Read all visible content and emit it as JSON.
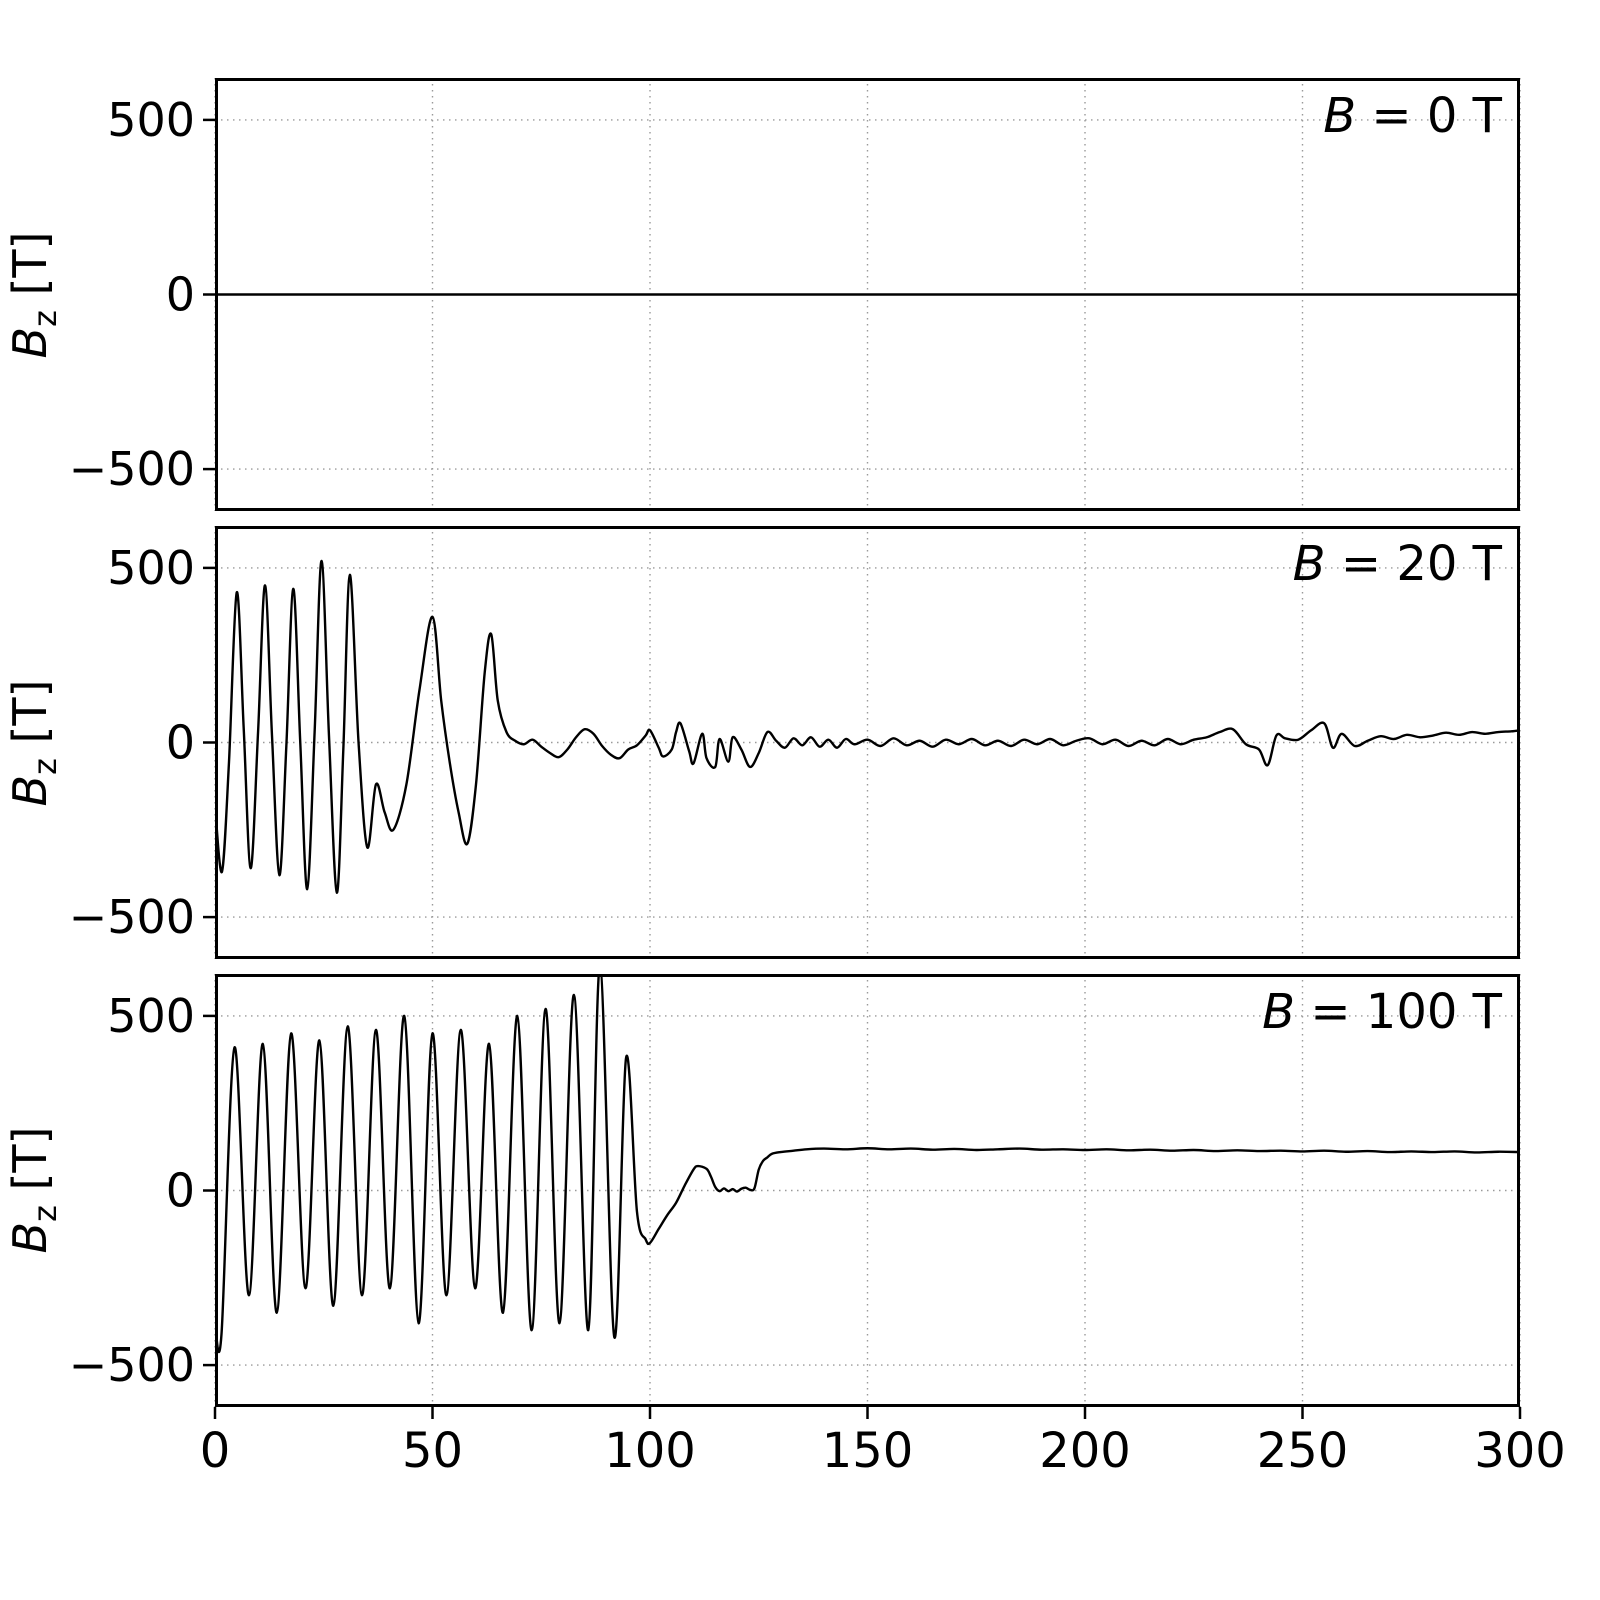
{
  "figure": {
    "background": "#ffffff",
    "line_color": "#000000",
    "grid_color": "#9a9a9a",
    "axis_color": "#000000"
  },
  "chart_data": {
    "type": "line",
    "layout": "3 vertically stacked subplots sharing one x-axis",
    "grid": true,
    "legend": "none",
    "x_range": [
      0,
      300
    ],
    "x_ticks": [
      0,
      50,
      100,
      150,
      200,
      250,
      300
    ],
    "x_tick_labels": [
      "0",
      "50",
      "100",
      "150",
      "200",
      "250",
      "300"
    ],
    "y_range": [
      -620,
      620
    ],
    "y_ticks": [
      500,
      0,
      -500
    ],
    "y_tick_labels": [
      "500",
      "0",
      "−500"
    ],
    "ylabel_parts": {
      "main": "B",
      "sub": "z",
      "unit": " [T]"
    },
    "panels": [
      {
        "annotation_var": "B",
        "annotation_rest": " = 0 T",
        "series": {
          "name": "Bz at B = 0 T",
          "points": [
            [
              0,
              0
            ],
            [
              300,
              0
            ]
          ]
        }
      },
      {
        "annotation_var": "B",
        "annotation_rest": " = 20 T",
        "series": {
          "name": "Bz at B = 20 T",
          "points": [
            [
              0,
              -180
            ],
            [
              1.6,
              -370
            ],
            [
              3.2,
              -60
            ],
            [
              5,
              430
            ],
            [
              6.6,
              40
            ],
            [
              8.2,
              -360
            ],
            [
              9.9,
              30
            ],
            [
              11.5,
              450
            ],
            [
              13.1,
              20
            ],
            [
              14.8,
              -380
            ],
            [
              16.4,
              -10
            ],
            [
              18,
              440
            ],
            [
              19.6,
              0
            ],
            [
              21.2,
              -420
            ],
            [
              22.9,
              30
            ],
            [
              24.5,
              520
            ],
            [
              26.2,
              20
            ],
            [
              28,
              -430
            ],
            [
              29.5,
              -20
            ],
            [
              31,
              480
            ],
            [
              33,
              0
            ],
            [
              35,
              -300
            ],
            [
              37,
              -120
            ],
            [
              39,
              -200
            ],
            [
              41,
              -250
            ],
            [
              44,
              -120
            ],
            [
              47,
              150
            ],
            [
              50,
              360
            ],
            [
              52,
              120
            ],
            [
              54,
              -60
            ],
            [
              56,
              -200
            ],
            [
              58,
              -290
            ],
            [
              60,
              -120
            ],
            [
              62,
              200
            ],
            [
              63.5,
              310
            ],
            [
              65,
              120
            ],
            [
              67,
              30
            ],
            [
              69,
              5
            ],
            [
              71,
              -5
            ],
            [
              73,
              8
            ],
            [
              75,
              -12
            ],
            [
              77,
              -30
            ],
            [
              79,
              -42
            ],
            [
              81,
              -20
            ],
            [
              83,
              15
            ],
            [
              85,
              38
            ],
            [
              87,
              25
            ],
            [
              89,
              -10
            ],
            [
              91,
              -35
            ],
            [
              93,
              -45
            ],
            [
              95,
              -20
            ],
            [
              97,
              -8
            ],
            [
              99,
              20
            ],
            [
              100,
              35
            ],
            [
              102,
              -15
            ],
            [
              103,
              -40
            ],
            [
              105,
              -20
            ],
            [
              106,
              30
            ],
            [
              107,
              55
            ],
            [
              109,
              -25
            ],
            [
              110,
              -60
            ],
            [
              112,
              25
            ],
            [
              113,
              -45
            ],
            [
              115,
              -70
            ],
            [
              116,
              10
            ],
            [
              118,
              -55
            ],
            [
              119,
              15
            ],
            [
              121,
              -20
            ],
            [
              123,
              -70
            ],
            [
              125,
              -30
            ],
            [
              127,
              30
            ],
            [
              129,
              5
            ],
            [
              131,
              -15
            ],
            [
              133,
              12
            ],
            [
              135,
              -8
            ],
            [
              137,
              15
            ],
            [
              139,
              -12
            ],
            [
              141,
              8
            ],
            [
              143,
              -15
            ],
            [
              145,
              10
            ],
            [
              147,
              -5
            ],
            [
              150,
              8
            ],
            [
              153,
              -10
            ],
            [
              156,
              12
            ],
            [
              159,
              -8
            ],
            [
              162,
              5
            ],
            [
              165,
              -12
            ],
            [
              168,
              8
            ],
            [
              171,
              -5
            ],
            [
              174,
              10
            ],
            [
              177,
              -8
            ],
            [
              180,
              5
            ],
            [
              183,
              -10
            ],
            [
              186,
              8
            ],
            [
              189,
              -5
            ],
            [
              192,
              10
            ],
            [
              195,
              -8
            ],
            [
              198,
              5
            ],
            [
              201,
              12
            ],
            [
              204,
              -5
            ],
            [
              207,
              8
            ],
            [
              210,
              -10
            ],
            [
              213,
              5
            ],
            [
              216,
              -8
            ],
            [
              219,
              10
            ],
            [
              222,
              -5
            ],
            [
              225,
              8
            ],
            [
              228,
              15
            ],
            [
              231,
              30
            ],
            [
              234,
              38
            ],
            [
              237,
              -5
            ],
            [
              240,
              -20
            ],
            [
              242,
              -65
            ],
            [
              244,
              20
            ],
            [
              246,
              12
            ],
            [
              249,
              8
            ],
            [
              252,
              35
            ],
            [
              255,
              55
            ],
            [
              257,
              -15
            ],
            [
              259,
              25
            ],
            [
              262,
              -10
            ],
            [
              265,
              5
            ],
            [
              268,
              18
            ],
            [
              271,
              10
            ],
            [
              274,
              22
            ],
            [
              277,
              15
            ],
            [
              280,
              20
            ],
            [
              283,
              28
            ],
            [
              286,
              22
            ],
            [
              289,
              30
            ],
            [
              292,
              25
            ],
            [
              295,
              30
            ],
            [
              298,
              32
            ],
            [
              300,
              35
            ]
          ]
        }
      },
      {
        "annotation_var": "B",
        "annotation_rest": " = 100 T",
        "series": {
          "name": "Bz at B = 100 T",
          "points": [
            [
              0,
              -380
            ],
            [
              1.5,
              -410
            ],
            [
              4.5,
              410
            ],
            [
              7.8,
              -300
            ],
            [
              11,
              420
            ],
            [
              14.2,
              -350
            ],
            [
              17.5,
              450
            ],
            [
              20.8,
              -280
            ],
            [
              24,
              430
            ],
            [
              27.2,
              -330
            ],
            [
              30.5,
              470
            ],
            [
              33.8,
              -300
            ],
            [
              37,
              460
            ],
            [
              40.2,
              -280
            ],
            [
              43.5,
              500
            ],
            [
              46.8,
              -380
            ],
            [
              50,
              450
            ],
            [
              53.2,
              -300
            ],
            [
              56.5,
              460
            ],
            [
              59.8,
              -280
            ],
            [
              63,
              420
            ],
            [
              66.2,
              -350
            ],
            [
              69.5,
              500
            ],
            [
              72.8,
              -400
            ],
            [
              76,
              520
            ],
            [
              79.2,
              -380
            ],
            [
              82.5,
              560
            ],
            [
              85.8,
              -400
            ],
            [
              88.5,
              645
            ],
            [
              91.8,
              -420
            ],
            [
              94.5,
              380
            ],
            [
              97,
              -60
            ],
            [
              99,
              -140
            ],
            [
              100,
              -150
            ],
            [
              102,
              -110
            ],
            [
              104,
              -70
            ],
            [
              106,
              -35
            ],
            [
              108,
              15
            ],
            [
              110,
              60
            ],
            [
              111,
              70
            ],
            [
              113,
              62
            ],
            [
              114,
              40
            ],
            [
              115,
              10
            ],
            [
              116,
              -2
            ],
            [
              117,
              6
            ],
            [
              118,
              -2
            ],
            [
              119,
              4
            ],
            [
              120,
              -3
            ],
            [
              121,
              5
            ],
            [
              122,
              8
            ],
            [
              123,
              2
            ],
            [
              124,
              6
            ],
            [
              125,
              60
            ],
            [
              126,
              85
            ],
            [
              127,
              95
            ],
            [
              128,
              105
            ],
            [
              130,
              110
            ],
            [
              133,
              114
            ],
            [
              136,
              118
            ],
            [
              140,
              120
            ],
            [
              145,
              118
            ],
            [
              150,
              121
            ],
            [
              155,
              118
            ],
            [
              160,
              120
            ],
            [
              165,
              117
            ],
            [
              170,
              119
            ],
            [
              175,
              116
            ],
            [
              180,
              118
            ],
            [
              185,
              120
            ],
            [
              190,
              117
            ],
            [
              195,
              118
            ],
            [
              200,
              116
            ],
            [
              205,
              118
            ],
            [
              210,
              115
            ],
            [
              215,
              117
            ],
            [
              220,
              114
            ],
            [
              225,
              116
            ],
            [
              230,
              113
            ],
            [
              235,
              115
            ],
            [
              240,
              113
            ],
            [
              245,
              114
            ],
            [
              250,
              112
            ],
            [
              255,
              114
            ],
            [
              260,
              111
            ],
            [
              265,
              113
            ],
            [
              270,
              110
            ],
            [
              275,
              112
            ],
            [
              280,
              110
            ],
            [
              285,
              112
            ],
            [
              290,
              109
            ],
            [
              295,
              111
            ],
            [
              300,
              110
            ]
          ]
        }
      }
    ]
  }
}
